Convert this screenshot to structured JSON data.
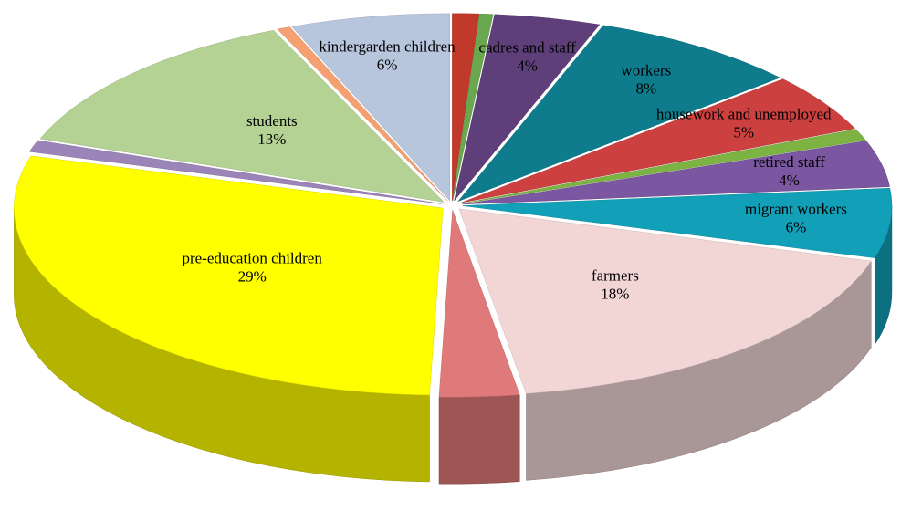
{
  "chart_data": {
    "type": "pie",
    "categories": [
      null,
      null,
      "cadres and staff",
      "workers",
      "housework and unemployed",
      null,
      "retired staff",
      "migrant workers",
      "farmers",
      null,
      "pre-education children",
      null,
      "students",
      null,
      "kindergarden children"
    ],
    "values": [
      1,
      0.5,
      4,
      8,
      5,
      1,
      4,
      6,
      18,
      3,
      29,
      1,
      13,
      0.5,
      6
    ],
    "value_labels": [
      null,
      null,
      "4%",
      "8%",
      "5%",
      null,
      "4%",
      "6%",
      "18%",
      null,
      "29%",
      null,
      "13%",
      null,
      "6%"
    ],
    "colors": [
      "#c0392b",
      "#6aa84f",
      "#5e3f7a",
      "#0e7c8c",
      "#cc4040",
      "#7cb342",
      "#7a57a0",
      "#12a0b8",
      "#f2d6d6",
      "#e07a7a",
      "#ffff00",
      "#9b85b8",
      "#b5d295",
      "#f4a070",
      "#b8c6dd"
    ]
  }
}
